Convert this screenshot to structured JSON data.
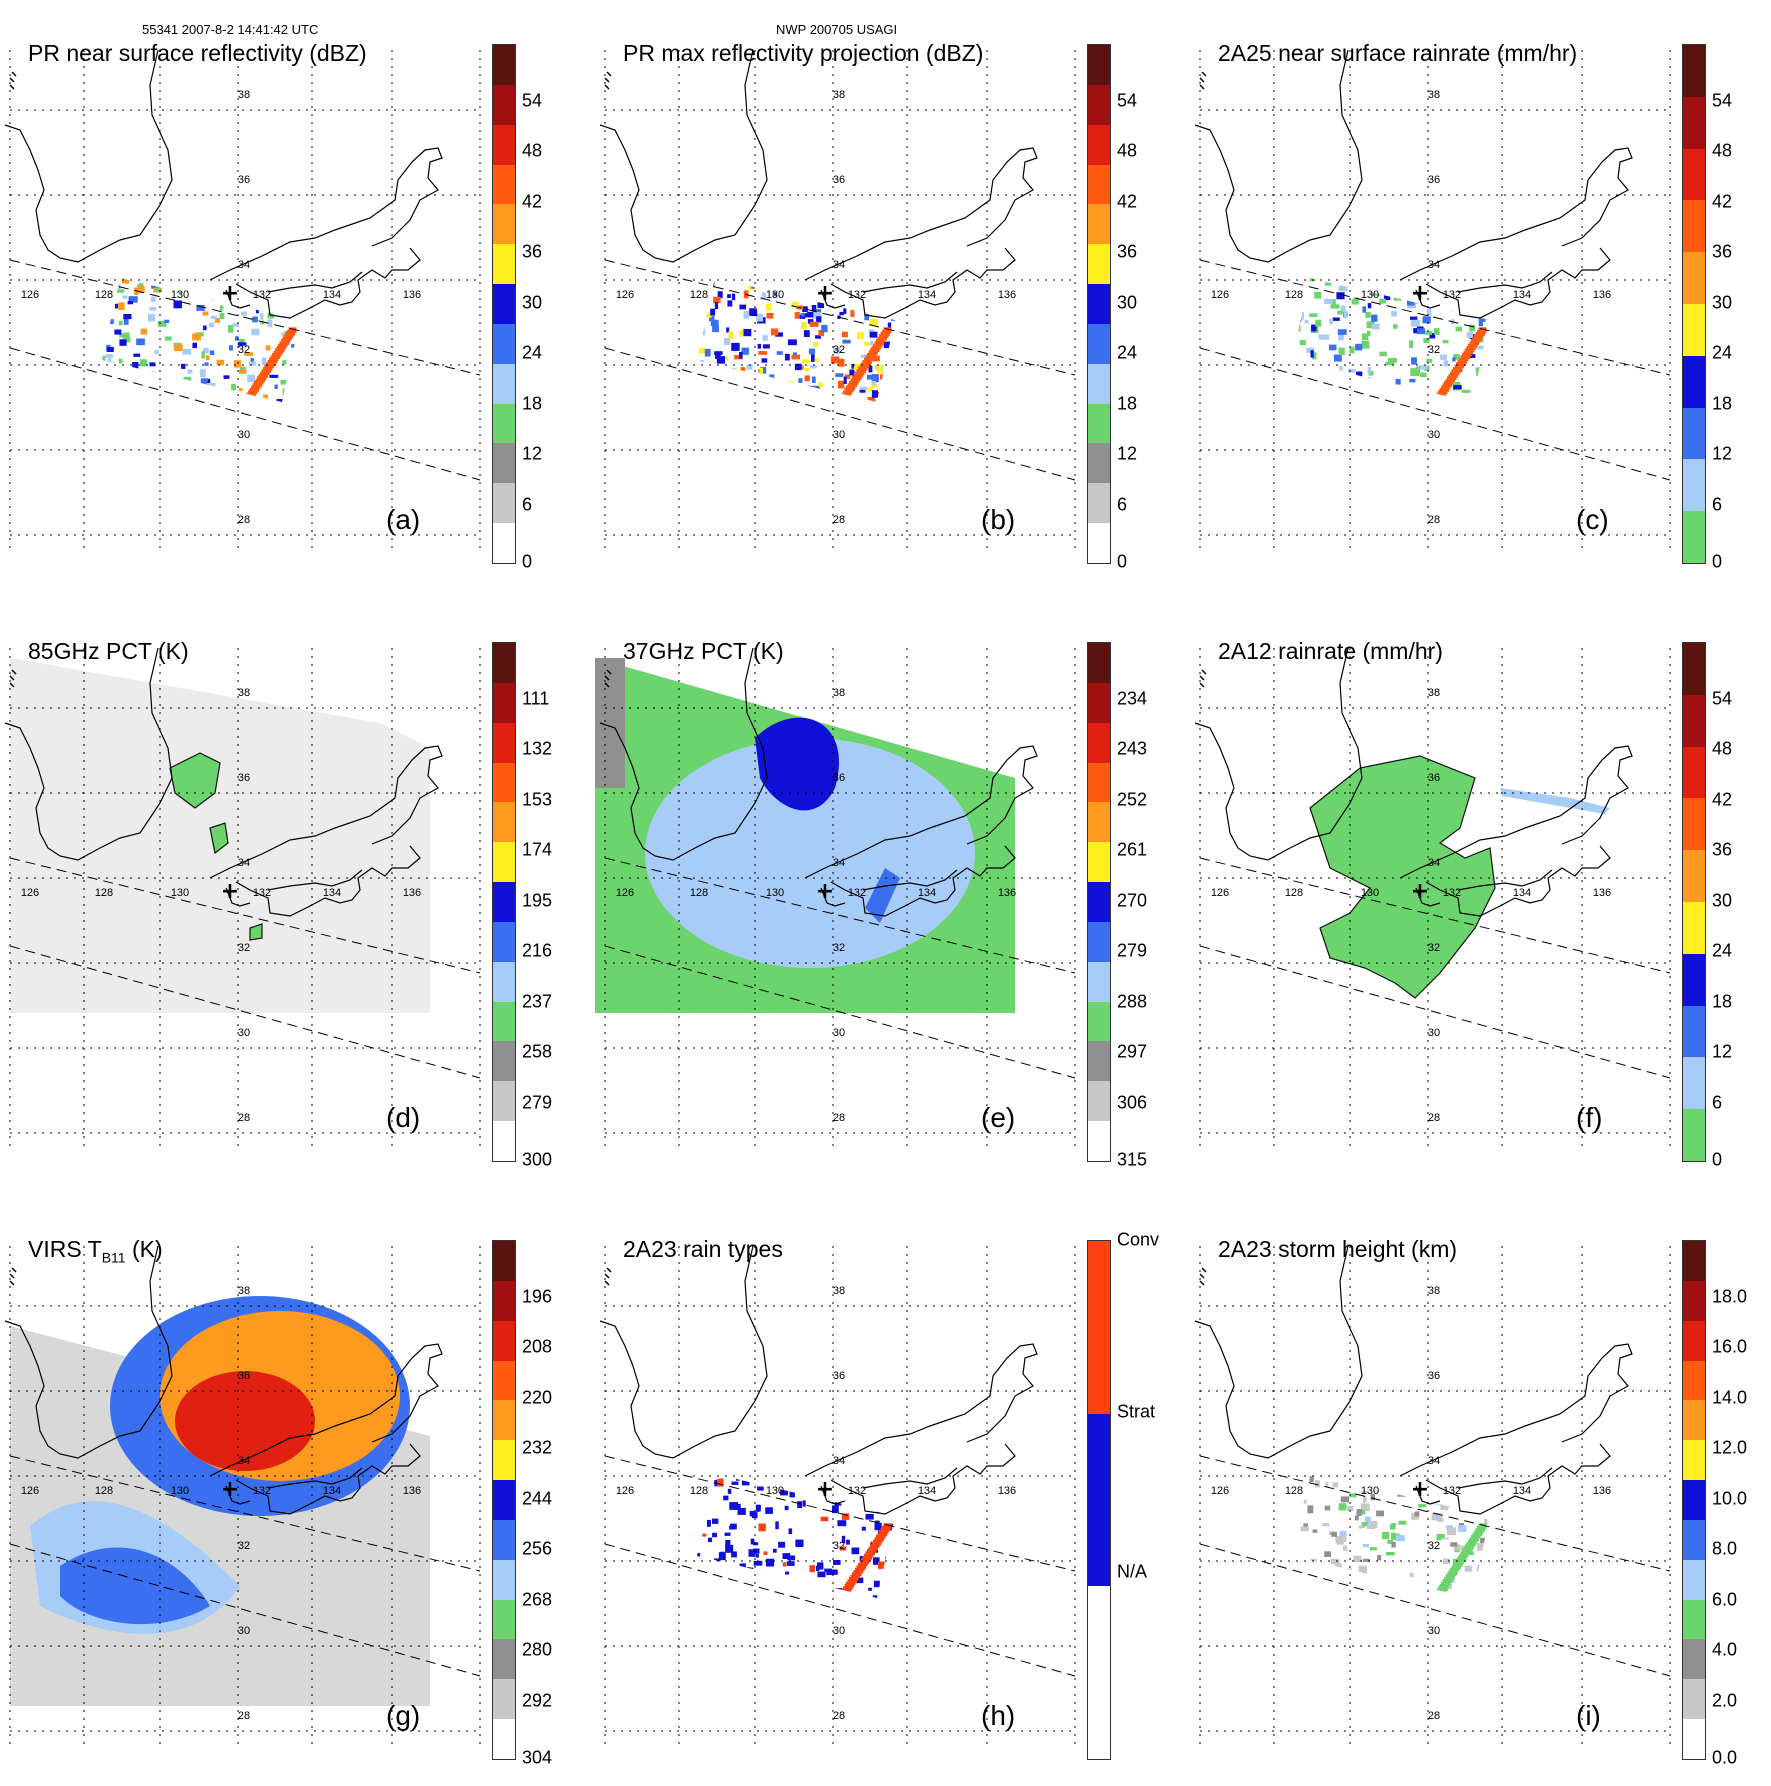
{
  "header": {
    "left": "55341 2007-8-2 14:41:42 UTC",
    "center": "NWP 200705 USAGI"
  },
  "map": {
    "lat_labels": [
      "38",
      "36",
      "34",
      "32",
      "30",
      "28"
    ],
    "lon_labels": [
      "126",
      "128",
      "130",
      "132",
      "134",
      "136"
    ],
    "center_marker": "+"
  },
  "panels": [
    {
      "id": "a",
      "title": "PR near surface reflectivity (dBZ)",
      "label": "(a)",
      "field": "swath_pr",
      "ticks": [
        "54",
        "48",
        "42",
        "36",
        "30",
        "24",
        "18",
        "12",
        "6",
        "0"
      ],
      "scale": "dbz"
    },
    {
      "id": "b",
      "title": "PR max reflectivity projection (dBZ)",
      "label": "(b)",
      "field": "swath_pr_max",
      "ticks": [
        "54",
        "48",
        "42",
        "36",
        "30",
        "24",
        "18",
        "12",
        "6",
        "0"
      ],
      "scale": "dbz"
    },
    {
      "id": "c",
      "title": "2A25 near surface rainrate (mm/hr)",
      "label": "(c)",
      "field": "swath_rain",
      "ticks": [
        "54",
        "48",
        "42",
        "36",
        "30",
        "24",
        "18",
        "12",
        "6",
        "0"
      ],
      "scale": "rain"
    },
    {
      "id": "d",
      "title": "85GHz PCT (K)",
      "label": "(d)",
      "field": "tmi85",
      "ticks": [
        "111",
        "132",
        "153",
        "174",
        "195",
        "216",
        "237",
        "258",
        "279",
        "300"
      ],
      "scale": "pct"
    },
    {
      "id": "e",
      "title": "37GHz PCT (K)",
      "label": "(e)",
      "field": "tmi37",
      "ticks": [
        "234",
        "243",
        "252",
        "261",
        "270",
        "279",
        "288",
        "297",
        "306",
        "315"
      ],
      "scale": "pct"
    },
    {
      "id": "f",
      "title": "2A12 rainrate (mm/hr)",
      "label": "(f)",
      "field": "tmi_rain",
      "ticks": [
        "54",
        "48",
        "42",
        "36",
        "30",
        "24",
        "18",
        "12",
        "6",
        "0"
      ],
      "scale": "rain"
    },
    {
      "id": "g",
      "title": "VIRS T",
      "title_sub": "B11",
      "title_tail": " (K)",
      "label": "(g)",
      "field": "virs",
      "ticks": [
        "196",
        "208",
        "220",
        "232",
        "244",
        "256",
        "268",
        "280",
        "292",
        "304"
      ],
      "scale": "pct"
    },
    {
      "id": "h",
      "title": "2A23 rain types",
      "label": "(h)",
      "field": "raintype",
      "ticks": [
        "Conv",
        "Strat",
        "N/A"
      ],
      "scale": "type"
    },
    {
      "id": "i",
      "title": "2A23 storm height (km)",
      "label": "(i)",
      "field": "stormht",
      "ticks": [
        "18.0",
        "16.0",
        "14.0",
        "12.0",
        "10.0",
        "8.0",
        "6.0",
        "4.0",
        "2.0",
        "0.0"
      ],
      "scale": "ht"
    }
  ],
  "colors": {
    "dbz": [
      "#5a1410",
      "#a01010",
      "#e02010",
      "#ff5a10",
      "#ff9a20",
      "#ffee20",
      "#1010d8",
      "#3a70f0",
      "#a8ccf8",
      "#6cd46c",
      "#909090",
      "#c8c8c8",
      "#ffffff"
    ],
    "rain": [
      "#5a1410",
      "#a01010",
      "#e02010",
      "#ff5a10",
      "#ff9a20",
      "#ffee20",
      "#1010d8",
      "#3a70f0",
      "#a8ccf8",
      "#6cd46c"
    ],
    "pct": [
      "#5a1410",
      "#a01010",
      "#e02010",
      "#ff5a10",
      "#ff9a20",
      "#ffee20",
      "#1010d8",
      "#3a70f0",
      "#a8ccf8",
      "#6cd46c",
      "#909090",
      "#c8c8c8",
      "#ffffff"
    ],
    "type": [
      "#ff4010",
      "#1010d8",
      "#ffffff"
    ],
    "ht": [
      "#5a1410",
      "#a01010",
      "#e02010",
      "#ff5a10",
      "#ff9a20",
      "#ffee20",
      "#1010d8",
      "#3a70f0",
      "#a8ccf8",
      "#6cd46c",
      "#909090",
      "#c8c8c8",
      "#ffffff"
    ]
  },
  "chart_data": [
    {
      "type": "heatmap",
      "title": "PR near surface reflectivity (dBZ)",
      "colorbar_range": [
        0,
        60
      ],
      "colorbar_ticks": [
        0,
        6,
        12,
        18,
        24,
        30,
        36,
        42,
        48,
        54
      ]
    },
    {
      "type": "heatmap",
      "title": "PR max reflectivity projection (dBZ)",
      "colorbar_range": [
        0,
        60
      ],
      "colorbar_ticks": [
        0,
        6,
        12,
        18,
        24,
        30,
        36,
        42,
        48,
        54
      ]
    },
    {
      "type": "heatmap",
      "title": "2A25 near surface rainrate (mm/hr)",
      "colorbar_range": [
        0,
        60
      ],
      "colorbar_ticks": [
        0,
        6,
        12,
        18,
        24,
        30,
        36,
        42,
        48,
        54
      ]
    },
    {
      "type": "heatmap",
      "title": "85GHz PCT (K)",
      "colorbar_range": [
        300,
        90
      ],
      "colorbar_ticks": [
        300,
        279,
        258,
        237,
        216,
        195,
        174,
        153,
        132,
        111
      ]
    },
    {
      "type": "heatmap",
      "title": "37GHz PCT (K)",
      "colorbar_range": [
        315,
        225
      ],
      "colorbar_ticks": [
        315,
        306,
        297,
        288,
        279,
        270,
        261,
        252,
        243,
        234
      ]
    },
    {
      "type": "heatmap",
      "title": "2A12 rainrate (mm/hr)",
      "colorbar_range": [
        0,
        60
      ],
      "colorbar_ticks": [
        0,
        6,
        12,
        18,
        24,
        30,
        36,
        42,
        48,
        54
      ]
    },
    {
      "type": "heatmap",
      "title": "VIRS T B11 (K)",
      "colorbar_range": [
        304,
        184
      ],
      "colorbar_ticks": [
        304,
        292,
        280,
        268,
        256,
        244,
        232,
        220,
        208,
        196
      ]
    },
    {
      "type": "heatmap",
      "title": "2A23 rain types",
      "categories": [
        "N/A",
        "Strat",
        "Conv"
      ]
    },
    {
      "type": "heatmap",
      "title": "2A23 storm height (km)",
      "colorbar_range": [
        0,
        20
      ],
      "colorbar_ticks": [
        0,
        2,
        4,
        6,
        8,
        10,
        12,
        14,
        16,
        18
      ]
    }
  ]
}
